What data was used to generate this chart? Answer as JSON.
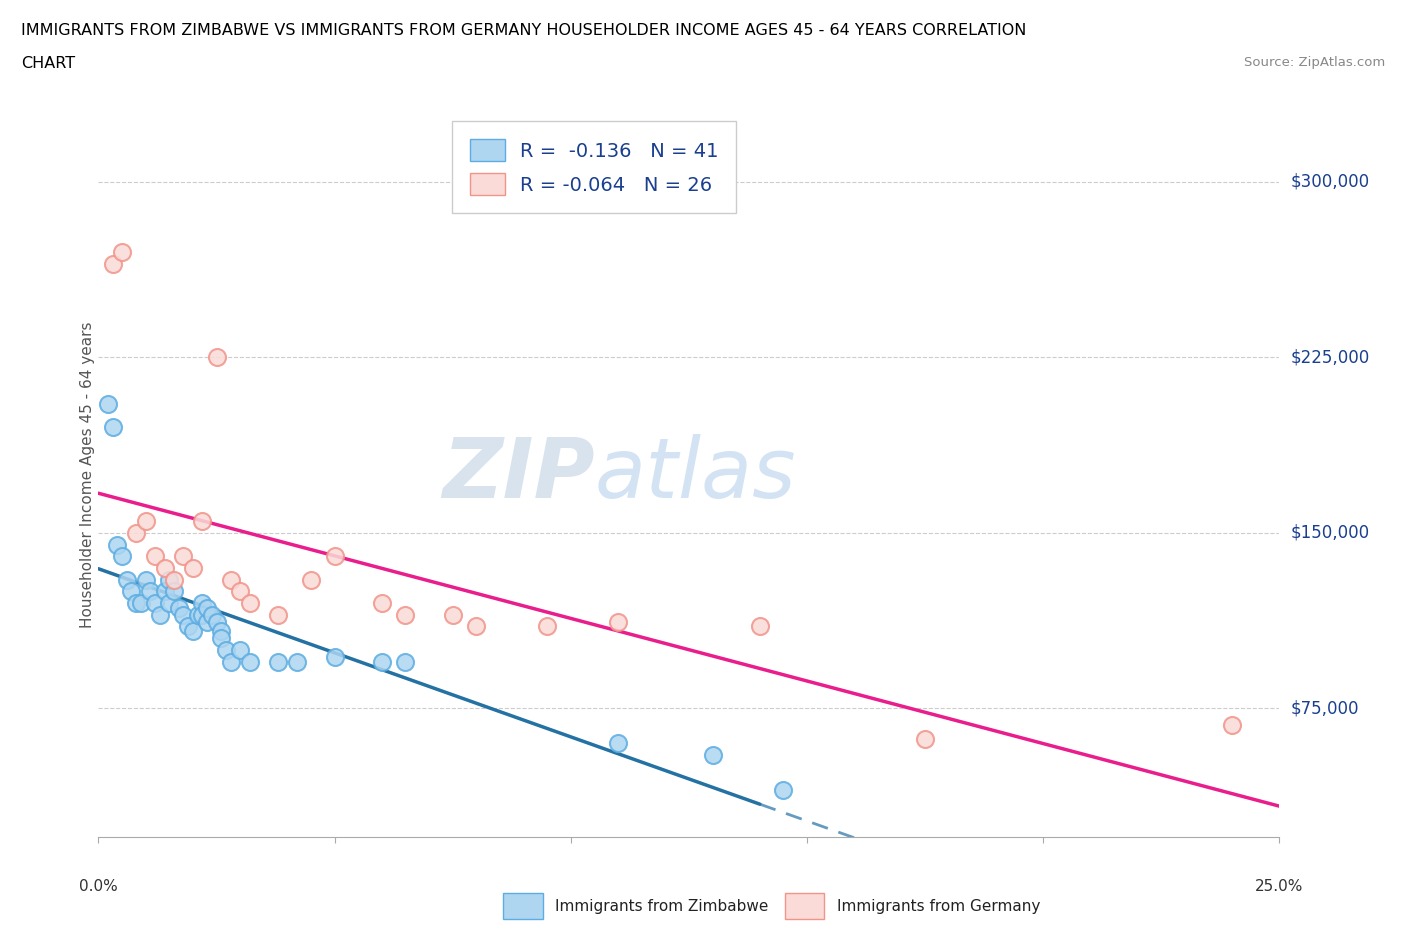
{
  "title_line1": "IMMIGRANTS FROM ZIMBABWE VS IMMIGRANTS FROM GERMANY HOUSEHOLDER INCOME AGES 45 - 64 YEARS CORRELATION",
  "title_line2": "CHART",
  "source": "Source: ZipAtlas.com",
  "ylabel": "Householder Income Ages 45 - 64 years",
  "r_zimbabwe": -0.136,
  "n_zimbabwe": 41,
  "r_germany": -0.064,
  "n_germany": 26,
  "legend_label_zimbabwe": "Immigrants from Zimbabwe",
  "legend_label_germany": "Immigrants from Germany",
  "yticks": [
    75000,
    150000,
    225000,
    300000
  ],
  "ytick_labels": [
    "$75,000",
    "$150,000",
    "$225,000",
    "$300,000"
  ],
  "xmin": 0.0,
  "xmax": 0.25,
  "ymin": 20000,
  "ymax": 330000,
  "color_zimbabwe_fill": "#AED6F1",
  "color_zimbabwe_edge": "#5DADE2",
  "color_germany_fill": "#FADBD8",
  "color_germany_edge": "#F1948A",
  "line_color_zimbabwe": "#2471A3",
  "line_color_germany": "#E91E8C",
  "text_color_blue": "#1a3f8f",
  "zimbabwe_x": [
    0.002,
    0.003,
    0.004,
    0.005,
    0.006,
    0.007,
    0.008,
    0.009,
    0.01,
    0.011,
    0.012,
    0.013,
    0.014,
    0.015,
    0.015,
    0.016,
    0.017,
    0.018,
    0.019,
    0.02,
    0.021,
    0.022,
    0.022,
    0.023,
    0.023,
    0.024,
    0.025,
    0.026,
    0.026,
    0.027,
    0.028,
    0.03,
    0.032,
    0.038,
    0.042,
    0.05,
    0.06,
    0.065,
    0.11,
    0.13,
    0.145
  ],
  "zimbabwe_y": [
    205000,
    195000,
    145000,
    140000,
    130000,
    125000,
    120000,
    120000,
    130000,
    125000,
    120000,
    115000,
    125000,
    130000,
    120000,
    125000,
    118000,
    115000,
    110000,
    108000,
    115000,
    120000,
    115000,
    112000,
    118000,
    115000,
    112000,
    108000,
    105000,
    100000,
    95000,
    100000,
    95000,
    95000,
    95000,
    97000,
    95000,
    95000,
    60000,
    55000,
    40000
  ],
  "germany_x": [
    0.003,
    0.005,
    0.008,
    0.01,
    0.012,
    0.014,
    0.016,
    0.018,
    0.02,
    0.022,
    0.025,
    0.028,
    0.03,
    0.032,
    0.038,
    0.045,
    0.05,
    0.06,
    0.065,
    0.075,
    0.08,
    0.095,
    0.11,
    0.14,
    0.175,
    0.24
  ],
  "germany_y": [
    265000,
    270000,
    150000,
    155000,
    140000,
    135000,
    130000,
    140000,
    135000,
    155000,
    225000,
    130000,
    125000,
    120000,
    115000,
    130000,
    140000,
    120000,
    115000,
    115000,
    110000,
    110000,
    112000,
    110000,
    62000,
    68000
  ],
  "zim_line_x_end": 0.14,
  "ger_line_x_end": 0.25
}
